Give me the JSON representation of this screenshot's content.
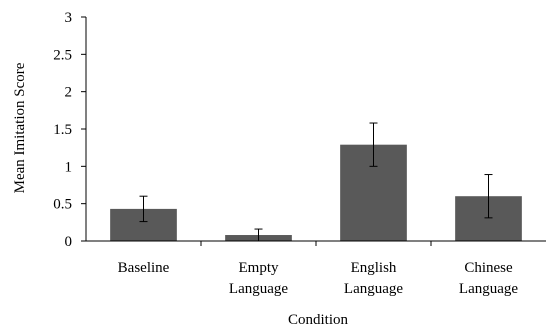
{
  "chart_data": {
    "type": "bar",
    "xlabel": "Condition",
    "ylabel": "Mean Imitation Score",
    "ylim": [
      0,
      3
    ],
    "yticks": [
      0,
      0.5,
      1,
      1.5,
      2,
      2.5,
      3
    ],
    "ytick_labels": [
      "0",
      "0.5",
      "1",
      "1.5",
      "2",
      "2.5",
      "3"
    ],
    "grid": false,
    "legend": "none",
    "bar_color": "#595959",
    "categories": [
      [
        "Baseline"
      ],
      [
        "Empty",
        "Language"
      ],
      [
        "English",
        "Language"
      ],
      [
        "Chinese",
        "Language"
      ]
    ],
    "values": [
      0.43,
      0.08,
      1.29,
      0.6
    ],
    "error_low": [
      0.26,
      0.0,
      1.0,
      0.31
    ],
    "error_high": [
      0.6,
      0.16,
      1.58,
      0.89
    ]
  }
}
